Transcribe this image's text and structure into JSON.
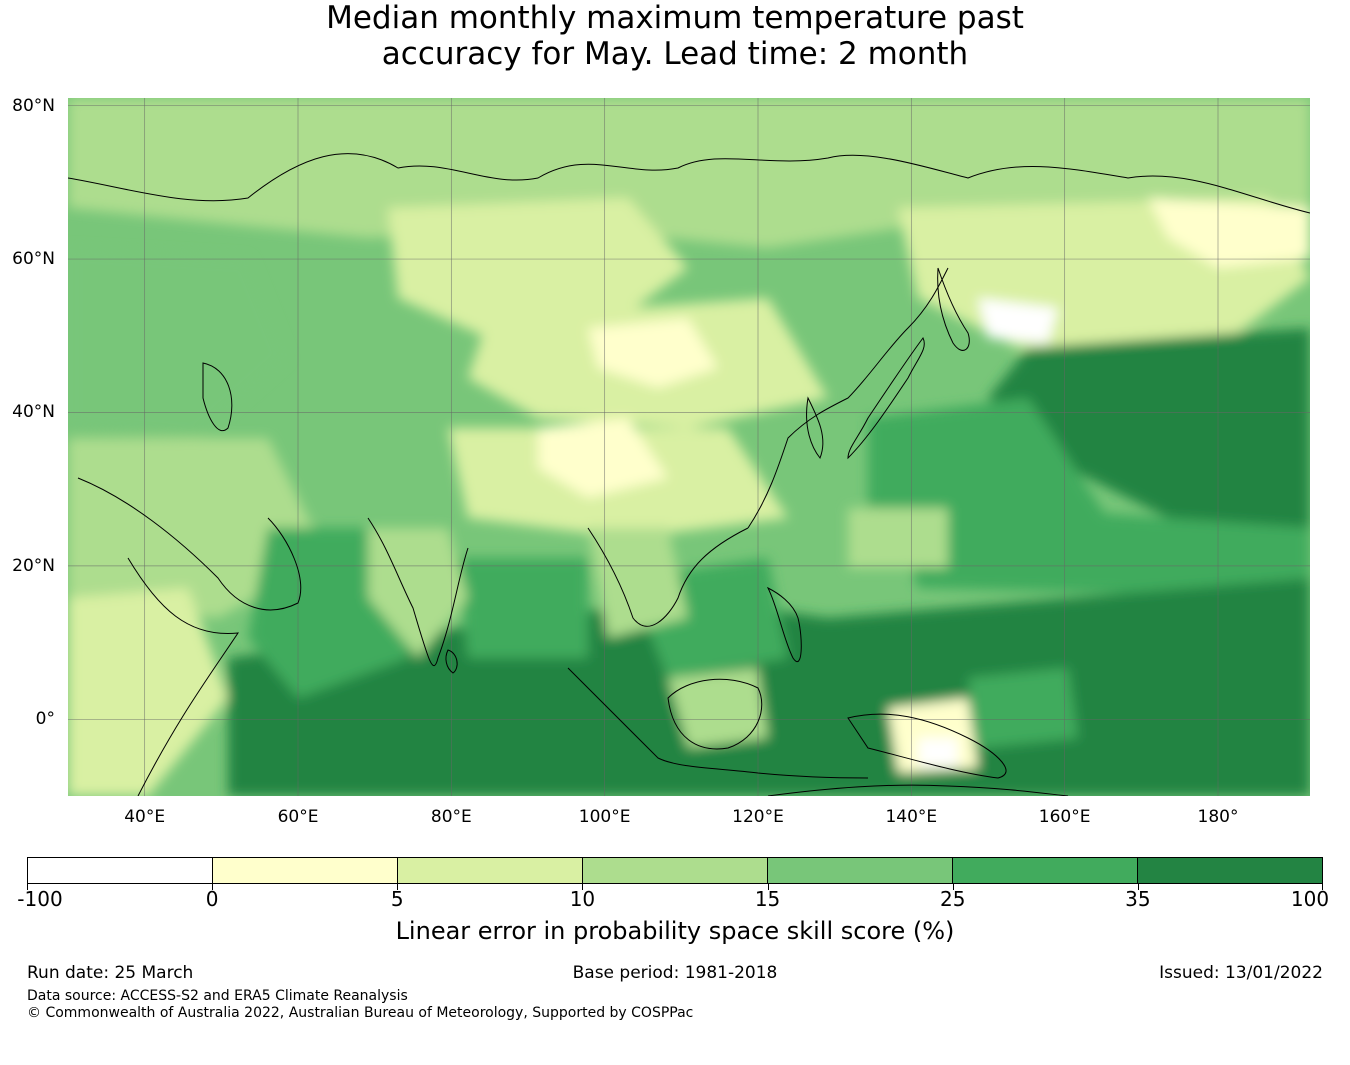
{
  "title": {
    "line1": "Median monthly maximum temperature past",
    "line2": "accuracy for May. Lead time: 2 month"
  },
  "map": {
    "lat_labels": [
      "80°N",
      "60°N",
      "40°N",
      "20°N",
      "0°"
    ],
    "lat_values": [
      80,
      60,
      40,
      20,
      0
    ],
    "lon_labels": [
      "40°E",
      "60°E",
      "80°E",
      "100°E",
      "120°E",
      "140°E",
      "160°E",
      "180°"
    ],
    "lon_values": [
      40,
      60,
      80,
      100,
      120,
      140,
      160,
      180
    ],
    "lon_range": [
      30,
      192
    ],
    "lat_range": [
      -10,
      81
    ],
    "background_color": "#41ab5d",
    "coastline_color": "#000000",
    "gridline_color": "#666666"
  },
  "colorbar": {
    "boundaries": [
      "-100",
      "0",
      "5",
      "10",
      "15",
      "25",
      "35",
      "100"
    ],
    "colors": [
      "#ffffff",
      "#ffffcc",
      "#d9f0a3",
      "#addd8e",
      "#78c679",
      "#41ab5d",
      "#238443"
    ],
    "label": "Linear error in probability space skill score (%)"
  },
  "footer": {
    "run_date": "Run date: 25 March",
    "base_period": "Base period: 1981-2018",
    "issued": "Issued: 13/01/2022",
    "data_source": "Data source: ACCESS-S2 and ERA5 Climate Reanalysis",
    "copyright": "© Commonwealth of Australia 2022, Australian Bureau of Meteorology, Supported by COSPPac"
  }
}
